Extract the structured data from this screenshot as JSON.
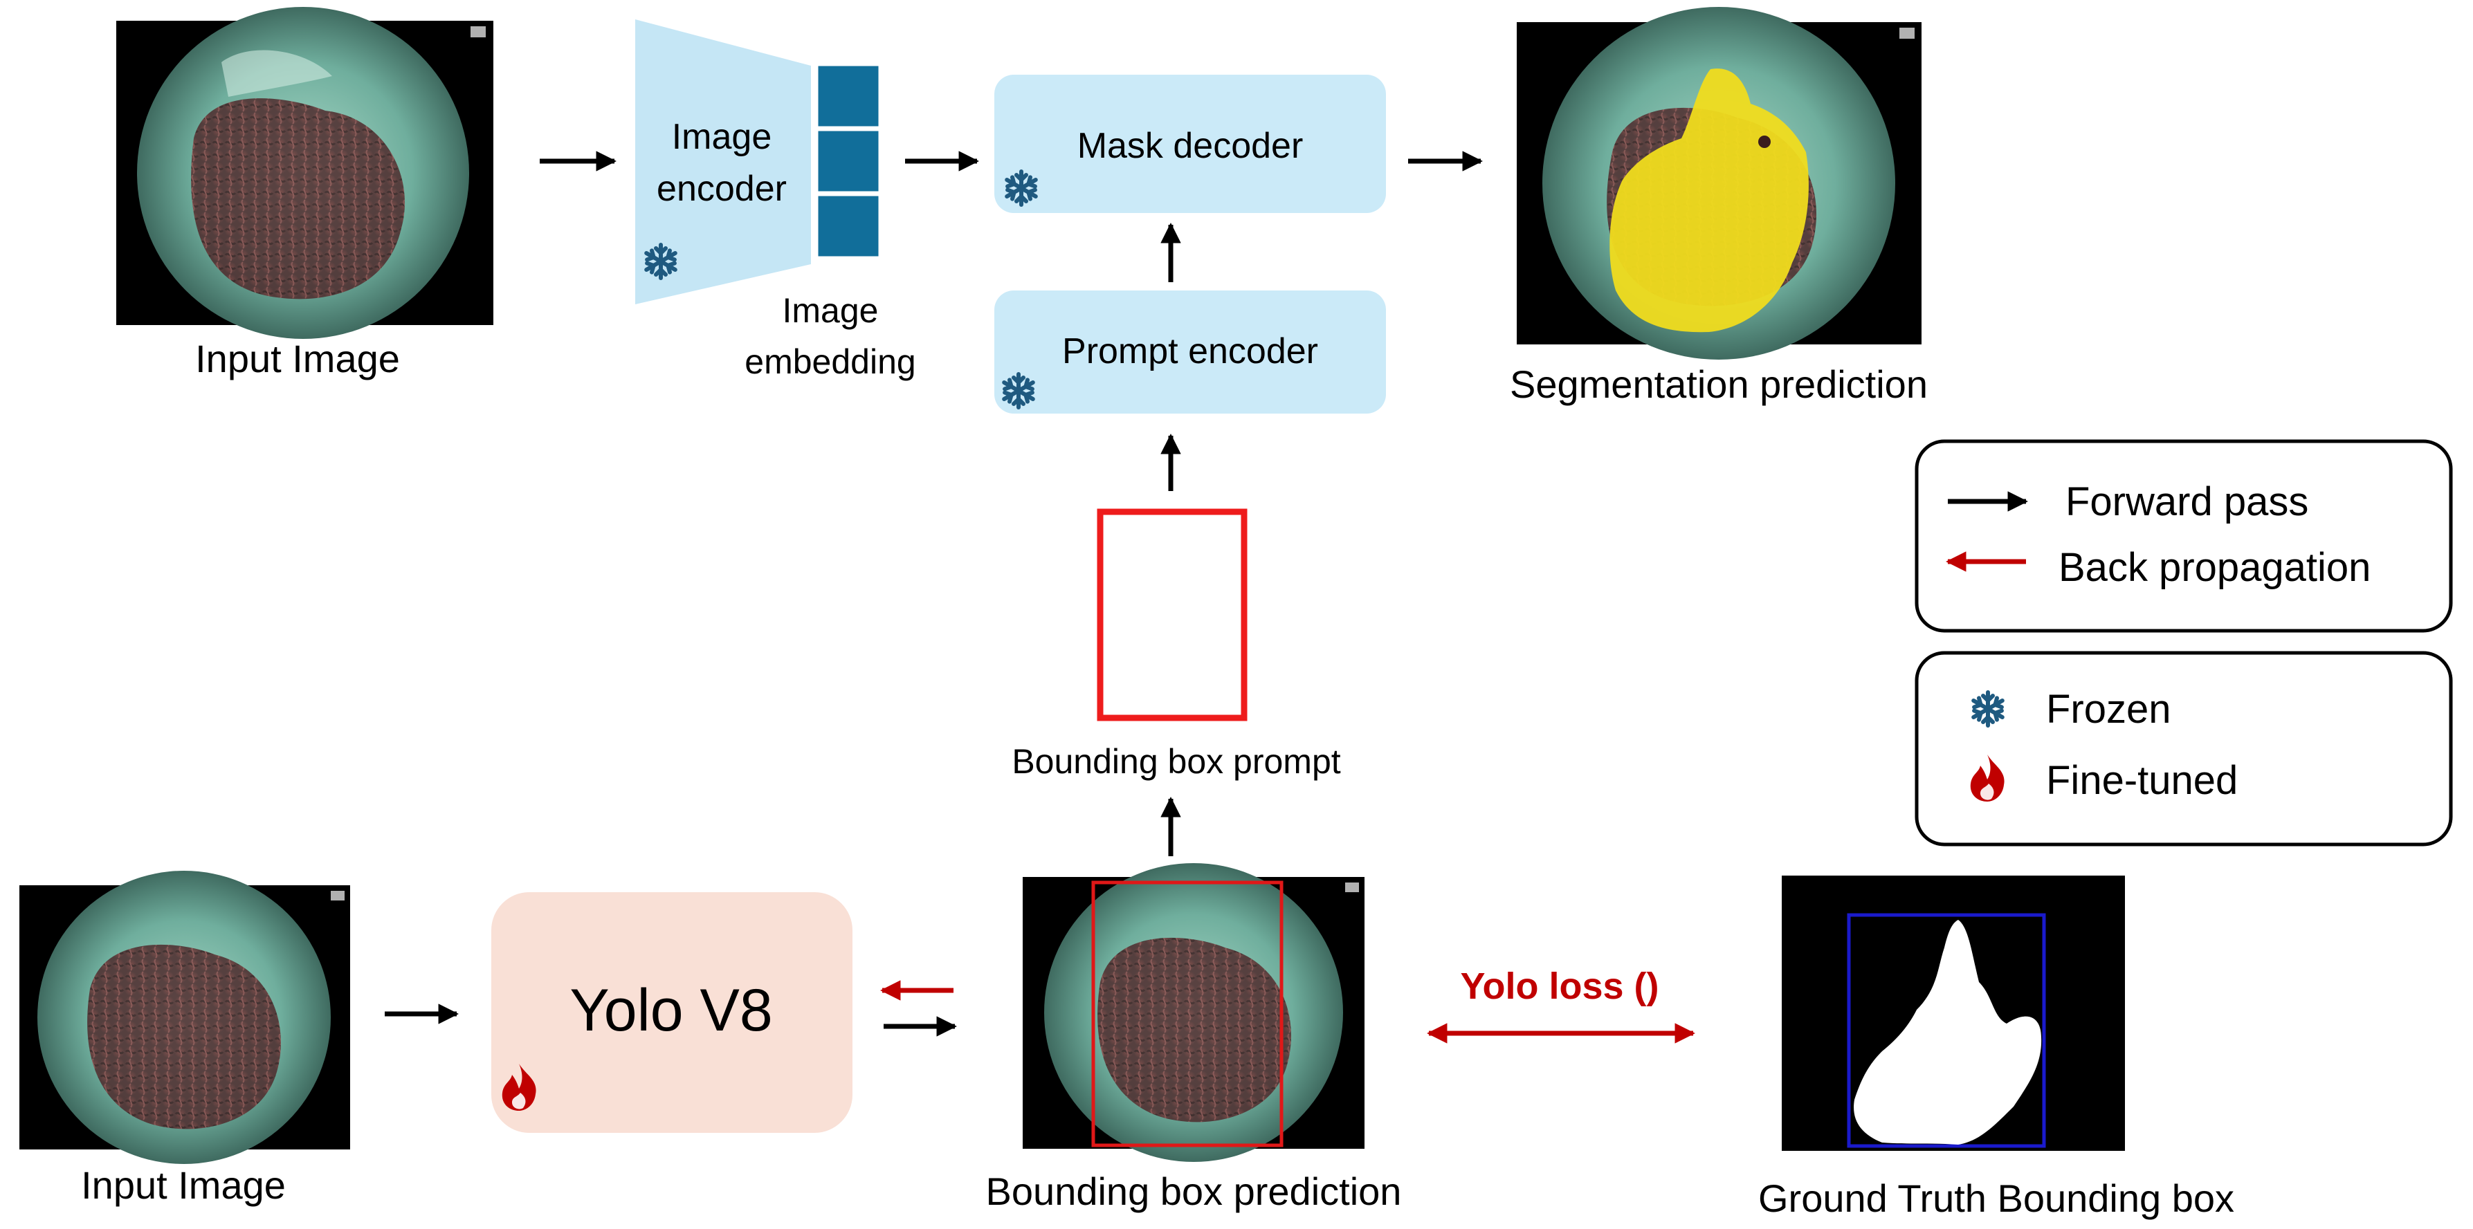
{
  "top_row": {
    "input_image_label": "Input Image",
    "image_encoder_label_line1": "Image",
    "image_encoder_label_line2": "encoder",
    "image_embedding_label_line1": "Image",
    "image_embedding_label_line2": "embedding",
    "mask_decoder_label": "Mask decoder",
    "prompt_encoder_label": "Prompt encoder",
    "segmentation_label": "Segmentation prediction"
  },
  "middle": {
    "bounding_box_prompt_label": "Bounding box prompt"
  },
  "bottom_row": {
    "input_image_label": "Input Image",
    "yolo_label": "Yolo V8",
    "bbox_prediction_label": "Bounding box prediction",
    "yolo_loss_label": "Yolo loss ()",
    "ground_truth_label": "Ground Truth Bounding box"
  },
  "legend_arrows": {
    "forward_label": "Forward pass",
    "backprop_label": "Back propagation"
  },
  "legend_status": {
    "frozen_label": "Frozen",
    "finetuned_label": "Fine-tuned"
  },
  "colors": {
    "forward_arrow": "#000000",
    "backprop_arrow": "#c00000",
    "encoder_fill": "#c5e6f5",
    "embedding_fill": "#116e9a",
    "module_fill": "#cbeaf8",
    "yolo_fill": "#f9e0d6",
    "prompt_box": "#ee1c1c",
    "frozen_icon": "#1f5a80",
    "finetuned_icon": "#c00000",
    "endoscopy_tint": "#7fbfae",
    "mask_yellow": "#f0dc1e"
  }
}
